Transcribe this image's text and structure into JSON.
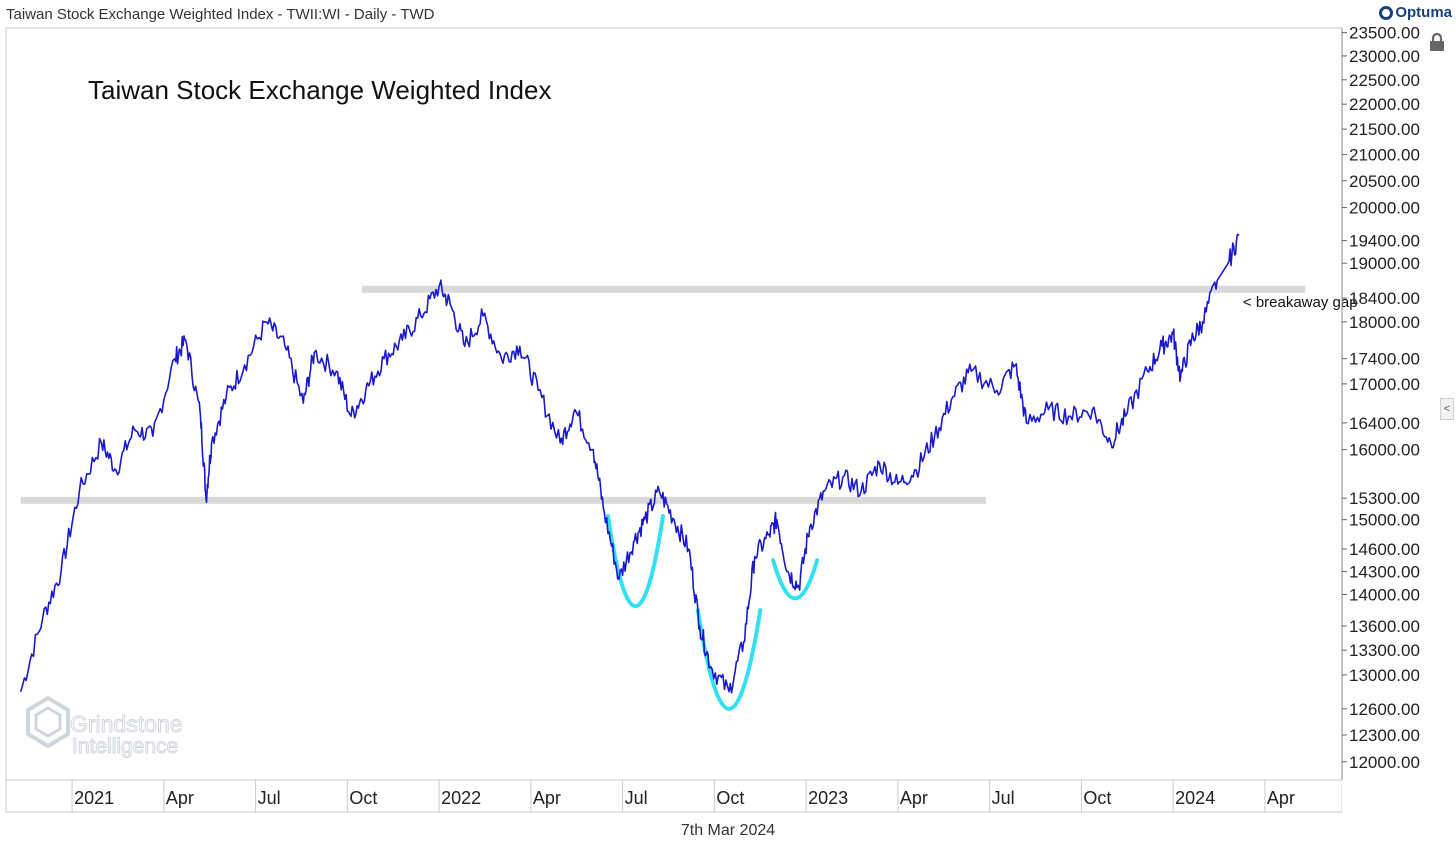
{
  "header": {
    "title": "Taiwan Stock Exchange Weighted Index - TWII:WI - Daily - TWD",
    "brand": "Optuma"
  },
  "footer": {
    "date": "7th Mar 2024"
  },
  "watermark": {
    "line1": "Grindstone",
    "line2": "Intelligence"
  },
  "chart_data": {
    "type": "line",
    "title": "Taiwan Stock Exchange Weighted Index",
    "series": [
      {
        "name": "TWII:WI Daily (approx. closes)",
        "color": "#1a1acc",
        "points": [
          {
            "t": 2020.86,
            "v": 12800
          },
          {
            "t": 2020.92,
            "v": 13700
          },
          {
            "t": 2020.97,
            "v": 14300
          },
          {
            "t": 2021.02,
            "v": 15400
          },
          {
            "t": 2021.08,
            "v": 16100
          },
          {
            "t": 2021.12,
            "v": 15700
          },
          {
            "t": 2021.17,
            "v": 16300
          },
          {
            "t": 2021.22,
            "v": 16200
          },
          {
            "t": 2021.28,
            "v": 17400
          },
          {
            "t": 2021.31,
            "v": 17700
          },
          {
            "t": 2021.35,
            "v": 16500
          },
          {
            "t": 2021.365,
            "v": 15300
          },
          {
            "t": 2021.38,
            "v": 16100
          },
          {
            "t": 2021.42,
            "v": 16800
          },
          {
            "t": 2021.47,
            "v": 17300
          },
          {
            "t": 2021.53,
            "v": 18000
          },
          {
            "t": 2021.58,
            "v": 17600
          },
          {
            "t": 2021.63,
            "v": 16700
          },
          {
            "t": 2021.66,
            "v": 17500
          },
          {
            "t": 2021.72,
            "v": 17200
          },
          {
            "t": 2021.76,
            "v": 16500
          },
          {
            "t": 2021.8,
            "v": 16900
          },
          {
            "t": 2021.85,
            "v": 17400
          },
          {
            "t": 2021.9,
            "v": 17700
          },
          {
            "t": 2021.95,
            "v": 18100
          },
          {
            "t": 2022.0,
            "v": 18600
          },
          {
            "t": 2022.03,
            "v": 18300
          },
          {
            "t": 2022.07,
            "v": 17600
          },
          {
            "t": 2022.12,
            "v": 18100
          },
          {
            "t": 2022.17,
            "v": 17400
          },
          {
            "t": 2022.22,
            "v": 17600
          },
          {
            "t": 2022.27,
            "v": 16900
          },
          {
            "t": 2022.33,
            "v": 16100
          },
          {
            "t": 2022.37,
            "v": 16600
          },
          {
            "t": 2022.42,
            "v": 16000
          },
          {
            "t": 2022.45,
            "v": 15100
          },
          {
            "t": 2022.49,
            "v": 14200
          },
          {
            "t": 2022.53,
            "v": 14700
          },
          {
            "t": 2022.56,
            "v": 15000
          },
          {
            "t": 2022.6,
            "v": 15400
          },
          {
            "t": 2022.64,
            "v": 15000
          },
          {
            "t": 2022.68,
            "v": 14600
          },
          {
            "t": 2022.71,
            "v": 13600
          },
          {
            "t": 2022.74,
            "v": 13100
          },
          {
            "t": 2022.79,
            "v": 12800
          },
          {
            "t": 2022.83,
            "v": 13400
          },
          {
            "t": 2022.86,
            "v": 14500
          },
          {
            "t": 2022.9,
            "v": 14800
          },
          {
            "t": 2022.92,
            "v": 15000
          },
          {
            "t": 2022.95,
            "v": 14300
          },
          {
            "t": 2022.98,
            "v": 14100
          },
          {
            "t": 2023.01,
            "v": 14900
          },
          {
            "t": 2023.05,
            "v": 15400
          },
          {
            "t": 2023.1,
            "v": 15600
          },
          {
            "t": 2023.15,
            "v": 15400
          },
          {
            "t": 2023.2,
            "v": 15800
          },
          {
            "t": 2023.25,
            "v": 15500
          },
          {
            "t": 2023.3,
            "v": 15700
          },
          {
            "t": 2023.35,
            "v": 16200
          },
          {
            "t": 2023.4,
            "v": 16800
          },
          {
            "t": 2023.45,
            "v": 17200
          },
          {
            "t": 2023.52,
            "v": 16900
          },
          {
            "t": 2023.57,
            "v": 17300
          },
          {
            "t": 2023.6,
            "v": 16400
          },
          {
            "t": 2023.66,
            "v": 16600
          },
          {
            "t": 2023.72,
            "v": 16500
          },
          {
            "t": 2023.78,
            "v": 16600
          },
          {
            "t": 2023.83,
            "v": 16100
          },
          {
            "t": 2023.87,
            "v": 16500
          },
          {
            "t": 2023.93,
            "v": 17200
          },
          {
            "t": 2023.97,
            "v": 17600
          },
          {
            "t": 2024.0,
            "v": 17800
          },
          {
            "t": 2024.02,
            "v": 17100
          },
          {
            "t": 2024.05,
            "v": 17700
          },
          {
            "t": 2024.08,
            "v": 18000
          },
          {
            "t": 2024.12,
            "v": 18700
          },
          {
            "t": 2024.15,
            "v": 19000
          },
          {
            "t": 2024.18,
            "v": 19500
          }
        ]
      }
    ],
    "levels": [
      {
        "name": "resistance",
        "value": 18550,
        "from": 2021.79,
        "to": 2024.36,
        "color": "#d9d9d9"
      },
      {
        "name": "neckline",
        "value": 15270,
        "from": 2020.86,
        "to": 2023.49,
        "color": "#d9d9d9"
      }
    ],
    "annotations": [
      {
        "text": "< breakaway gap",
        "t": 2024.19,
        "v": 18250
      }
    ],
    "patterns": [
      {
        "name": "left-shoulder",
        "t_from": 2022.46,
        "t_to": 2022.61,
        "v_top": 15050,
        "v_bottom": 13850,
        "color": "#33e0f0"
      },
      {
        "name": "head",
        "t_from": 2022.705,
        "t_to": 2022.875,
        "v_top": 13800,
        "v_bottom": 12600,
        "color": "#33e0f0"
      },
      {
        "name": "right-shoulder",
        "t_from": 2022.91,
        "t_to": 2023.03,
        "v_top": 14450,
        "v_bottom": 13950,
        "color": "#33e0f0"
      }
    ],
    "xlabel": "",
    "ylabel": "",
    "xlim": [
      2020.82,
      2024.46
    ],
    "ylim": [
      11800,
      23600
    ],
    "scale": "log",
    "x_ticks": [
      {
        "label": "2021",
        "t": 2021.0
      },
      {
        "label": "Apr",
        "t": 2021.25
      },
      {
        "label": "Jul",
        "t": 2021.5
      },
      {
        "label": "Oct",
        "t": 2021.75
      },
      {
        "label": "2022",
        "t": 2022.0
      },
      {
        "label": "Apr",
        "t": 2022.25
      },
      {
        "label": "Jul",
        "t": 2022.5
      },
      {
        "label": "Oct",
        "t": 2022.75
      },
      {
        "label": "2023",
        "t": 2023.0
      },
      {
        "label": "Apr",
        "t": 2023.25
      },
      {
        "label": "Jul",
        "t": 2023.5
      },
      {
        "label": "Oct",
        "t": 2023.75
      },
      {
        "label": "2024",
        "t": 2024.0
      },
      {
        "label": "Apr",
        "t": 2024.25
      }
    ],
    "y_ticks": [
      {
        "label": "23500.00",
        "v": 23500
      },
      {
        "label": "23000.00",
        "v": 23000
      },
      {
        "label": "22500.00",
        "v": 22500
      },
      {
        "label": "22000.00",
        "v": 22000
      },
      {
        "label": "21500.00",
        "v": 21500
      },
      {
        "label": "21000.00",
        "v": 21000
      },
      {
        "label": "20500.00",
        "v": 20500
      },
      {
        "label": "20000.00",
        "v": 20000
      },
      {
        "label": "19400.00",
        "v": 19400
      },
      {
        "label": "19000.00",
        "v": 19000
      },
      {
        "label": "18400.00",
        "v": 18400
      },
      {
        "label": "18000.00",
        "v": 18000
      },
      {
        "label": "17400.00",
        "v": 17400
      },
      {
        "label": "17000.00",
        "v": 17000
      },
      {
        "label": "16400.00",
        "v": 16400
      },
      {
        "label": "16000.00",
        "v": 16000
      },
      {
        "label": "15300.00",
        "v": 15300
      },
      {
        "label": "15000.00",
        "v": 15000
      },
      {
        "label": "14600.00",
        "v": 14600
      },
      {
        "label": "14300.00",
        "v": 14300
      },
      {
        "label": "14000.00",
        "v": 14000
      },
      {
        "label": "13600.00",
        "v": 13600
      },
      {
        "label": "13300.00",
        "v": 13300
      },
      {
        "label": "13000.00",
        "v": 13000
      },
      {
        "label": "12600.00",
        "v": 12600
      },
      {
        "label": "12300.00",
        "v": 12300
      },
      {
        "label": "12000.00",
        "v": 12000
      }
    ],
    "grid": false,
    "legend": "none"
  }
}
